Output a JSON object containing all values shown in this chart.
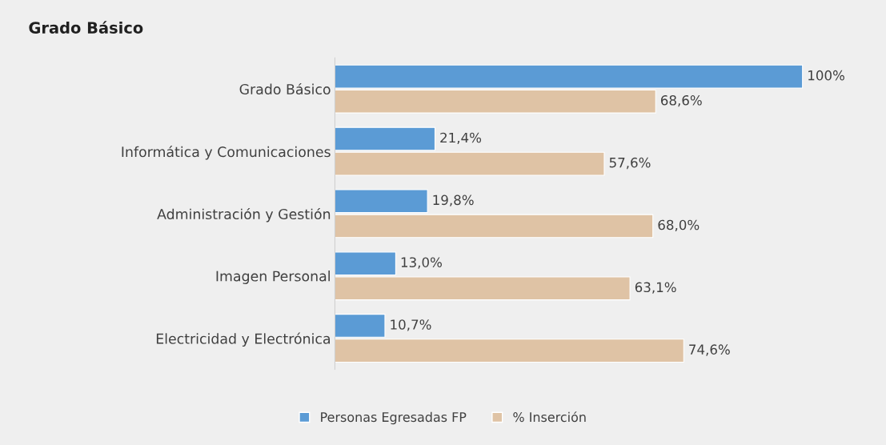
{
  "chart_data": {
    "type": "bar",
    "orientation": "horizontal",
    "title": "Grado Básico",
    "categories": [
      "Grado Básico",
      "Informática y Comunicaciones",
      "Administración y Gestión",
      "Imagen Personal",
      "Electricidad y Electrónica"
    ],
    "series": [
      {
        "name": "Personas Egresadas FP",
        "color": "#5b9bd5",
        "values": [
          100,
          21.4,
          19.8,
          13.0,
          10.7
        ],
        "value_labels": [
          "100%",
          "21,4%",
          "19,8%",
          "13,0%",
          "10,7%"
        ]
      },
      {
        "name": "% Inserción",
        "color": "#dfc3a5",
        "values": [
          68.6,
          57.6,
          68.0,
          63.1,
          74.6
        ],
        "value_labels": [
          "68,6%",
          "57,6%",
          "68,0%",
          "63,1%",
          "74,6%"
        ]
      }
    ],
    "legend": "bottom",
    "grid": false
  }
}
